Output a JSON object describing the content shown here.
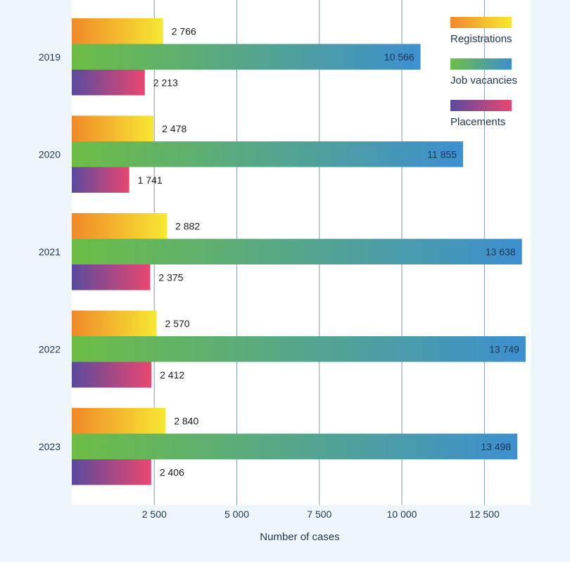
{
  "chart_data": {
    "type": "bar",
    "orientation": "horizontal",
    "categories": [
      "2019",
      "2020",
      "2021",
      "2022",
      "2023"
    ],
    "series": [
      {
        "name": "Registrations",
        "values": [
          2766,
          2478,
          2882,
          2570,
          2840
        ],
        "labels": [
          "2 766",
          "2 478",
          "2 882",
          "2 570",
          "2 840"
        ],
        "gradient": [
          "#f0892a",
          "#f7e832"
        ]
      },
      {
        "name": "Job vacancies",
        "values": [
          10566,
          11855,
          13638,
          13749,
          13498
        ],
        "labels": [
          "10 566",
          "11 855",
          "13 638",
          "13 749",
          "13 498"
        ],
        "gradient": [
          "#6dbd45",
          "#3d8fd0"
        ]
      },
      {
        "name": "Placements",
        "values": [
          2213,
          1741,
          2375,
          2412,
          2406
        ],
        "labels": [
          "2 213",
          "1 741",
          "2 375",
          "2 412",
          "2 406"
        ],
        "gradient": [
          "#5a4a9e",
          "#e94870"
        ]
      }
    ],
    "xlabel": "Number of cases",
    "xlim": [
      0,
      13900
    ],
    "xticks": [
      2500,
      5000,
      7500,
      10000,
      12500
    ],
    "xtick_labels": [
      "2 500",
      "5 000",
      "7 500",
      "10  000",
      "12  500"
    ],
    "grid": "vertical",
    "legend": "top-right",
    "colors": {
      "panel": "#ffffff",
      "page": "#eef6fc",
      "grid": "#7f9bb8",
      "text": "#1a1a1a",
      "axis_text": "#1d3557"
    }
  }
}
